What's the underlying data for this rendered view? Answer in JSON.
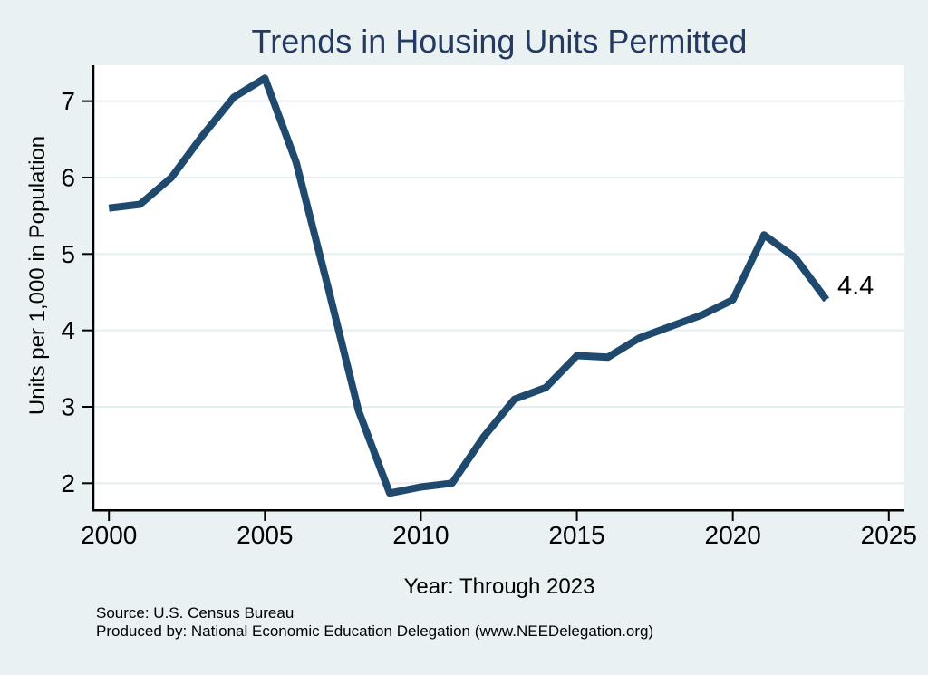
{
  "chart_data": {
    "type": "line",
    "title": "Trends in Housing Units Permitted",
    "xlabel": "Year: Through 2023",
    "ylabel": "Units per 1,000 in Population",
    "source": "Source: U.S. Census Bureau",
    "produced_by": "Produced by: National Economic Education Delegation (www.NEEDelegation.org)",
    "series_name": "Housing units permitted per 1,000 in population",
    "x": [
      2000,
      2001,
      2002,
      2003,
      2004,
      2005,
      2006,
      2007,
      2008,
      2009,
      2010,
      2011,
      2012,
      2013,
      2014,
      2015,
      2016,
      2017,
      2018,
      2019,
      2020,
      2021,
      2022,
      2023
    ],
    "values": [
      5.6,
      5.65,
      6.0,
      6.55,
      7.05,
      7.3,
      6.2,
      4.6,
      2.95,
      1.87,
      1.95,
      2.0,
      2.6,
      3.1,
      3.25,
      3.67,
      3.65,
      3.9,
      4.05,
      4.2,
      4.4,
      5.25,
      4.95,
      4.4
    ],
    "xticks": [
      2000,
      2005,
      2010,
      2015,
      2020,
      2025
    ],
    "yticks": [
      2,
      3,
      4,
      5,
      6,
      7
    ],
    "xlim": [
      1999.5,
      2025.5
    ],
    "ylim": [
      1.66,
      7.47
    ],
    "grid": "horizontal",
    "legend": "none",
    "annotation": {
      "text": "4.4",
      "year": 2023,
      "value": 4.4
    },
    "colors": {
      "background": "#e9f1f3",
      "plot_background": "#ffffff",
      "gridline": "#e3eef1",
      "line": "#1f4a6e",
      "title": "#243a63",
      "axis": "#000000"
    }
  }
}
